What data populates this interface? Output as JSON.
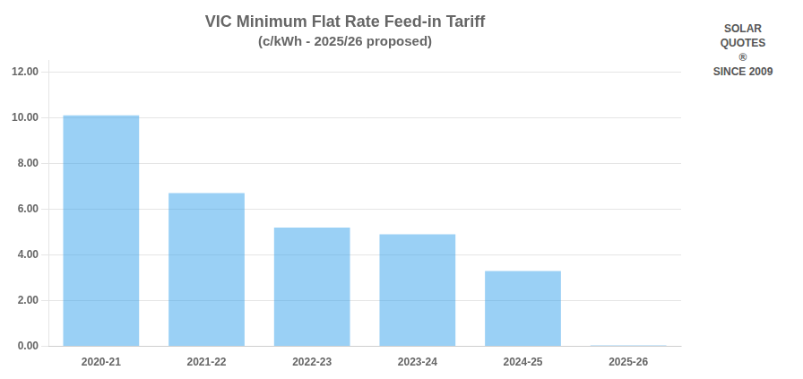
{
  "chart_data": {
    "type": "bar",
    "title": "VIC Minimum Flat Rate Feed-in Tariff",
    "subtitle": "(c/kWh - 2025/26 proposed)",
    "categories": [
      "2020-21",
      "2021-22",
      "2022-23",
      "2023-24",
      "2024-25",
      "2025-26"
    ],
    "values": [
      10.1,
      6.7,
      5.2,
      4.9,
      3.3,
      0.04
    ],
    "ylim": [
      0,
      12.5
    ],
    "yticks": [
      {
        "value": 0,
        "label": "0.00"
      },
      {
        "value": 2,
        "label": "2.00"
      },
      {
        "value": 4,
        "label": "4.00"
      },
      {
        "value": 6,
        "label": "6.00"
      },
      {
        "value": 8,
        "label": "8.00"
      },
      {
        "value": 10,
        "label": "10.00"
      },
      {
        "value": 12,
        "label": "12.00"
      }
    ],
    "grid": true,
    "annotations": [
      "SOLAR",
      "QUOTES",
      "®",
      "SINCE 2009"
    ]
  }
}
